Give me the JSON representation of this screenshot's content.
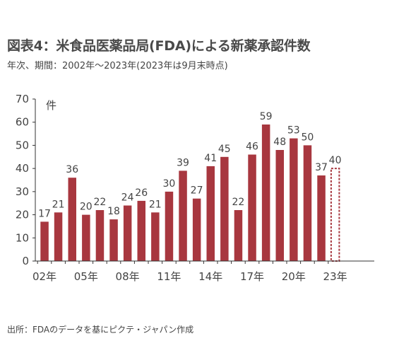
{
  "title": "図表4：米食品医薬品局(FDA)による新薬承認件数",
  "subtitle": "年次、期間：2002年～2023年(2023年は9月末時点)",
  "source": "出所：FDAのデータを基にピクテ・ジャパン作成",
  "colors": {
    "bar": "#a8373f",
    "axis": "#333333"
  },
  "chart_data": {
    "type": "bar",
    "categories": [
      "2002",
      "2003",
      "2004",
      "2005",
      "2006",
      "2007",
      "2008",
      "2009",
      "2010",
      "2011",
      "2012",
      "2013",
      "2014",
      "2015",
      "2016",
      "2017",
      "2018",
      "2019",
      "2020",
      "2021",
      "2022",
      "2023"
    ],
    "values": [
      17,
      21,
      36,
      20,
      22,
      18,
      24,
      26,
      21,
      30,
      39,
      27,
      41,
      45,
      22,
      46,
      59,
      48,
      53,
      50,
      37,
      40
    ],
    "partial": [
      false,
      false,
      false,
      false,
      false,
      false,
      false,
      false,
      false,
      false,
      false,
      false,
      false,
      false,
      false,
      false,
      false,
      false,
      false,
      false,
      false,
      true
    ],
    "x_tick_labels": [
      "02年",
      "05年",
      "08年",
      "11年",
      "14年",
      "17年",
      "20年",
      "23年"
    ],
    "x_tick_indices": [
      0,
      3,
      6,
      9,
      12,
      15,
      18,
      21
    ],
    "y_ticks": [
      0,
      10,
      20,
      30,
      40,
      50,
      60,
      70
    ],
    "ylim": [
      0,
      70
    ],
    "ylabel": "件",
    "xlabel": "",
    "grid": false
  }
}
